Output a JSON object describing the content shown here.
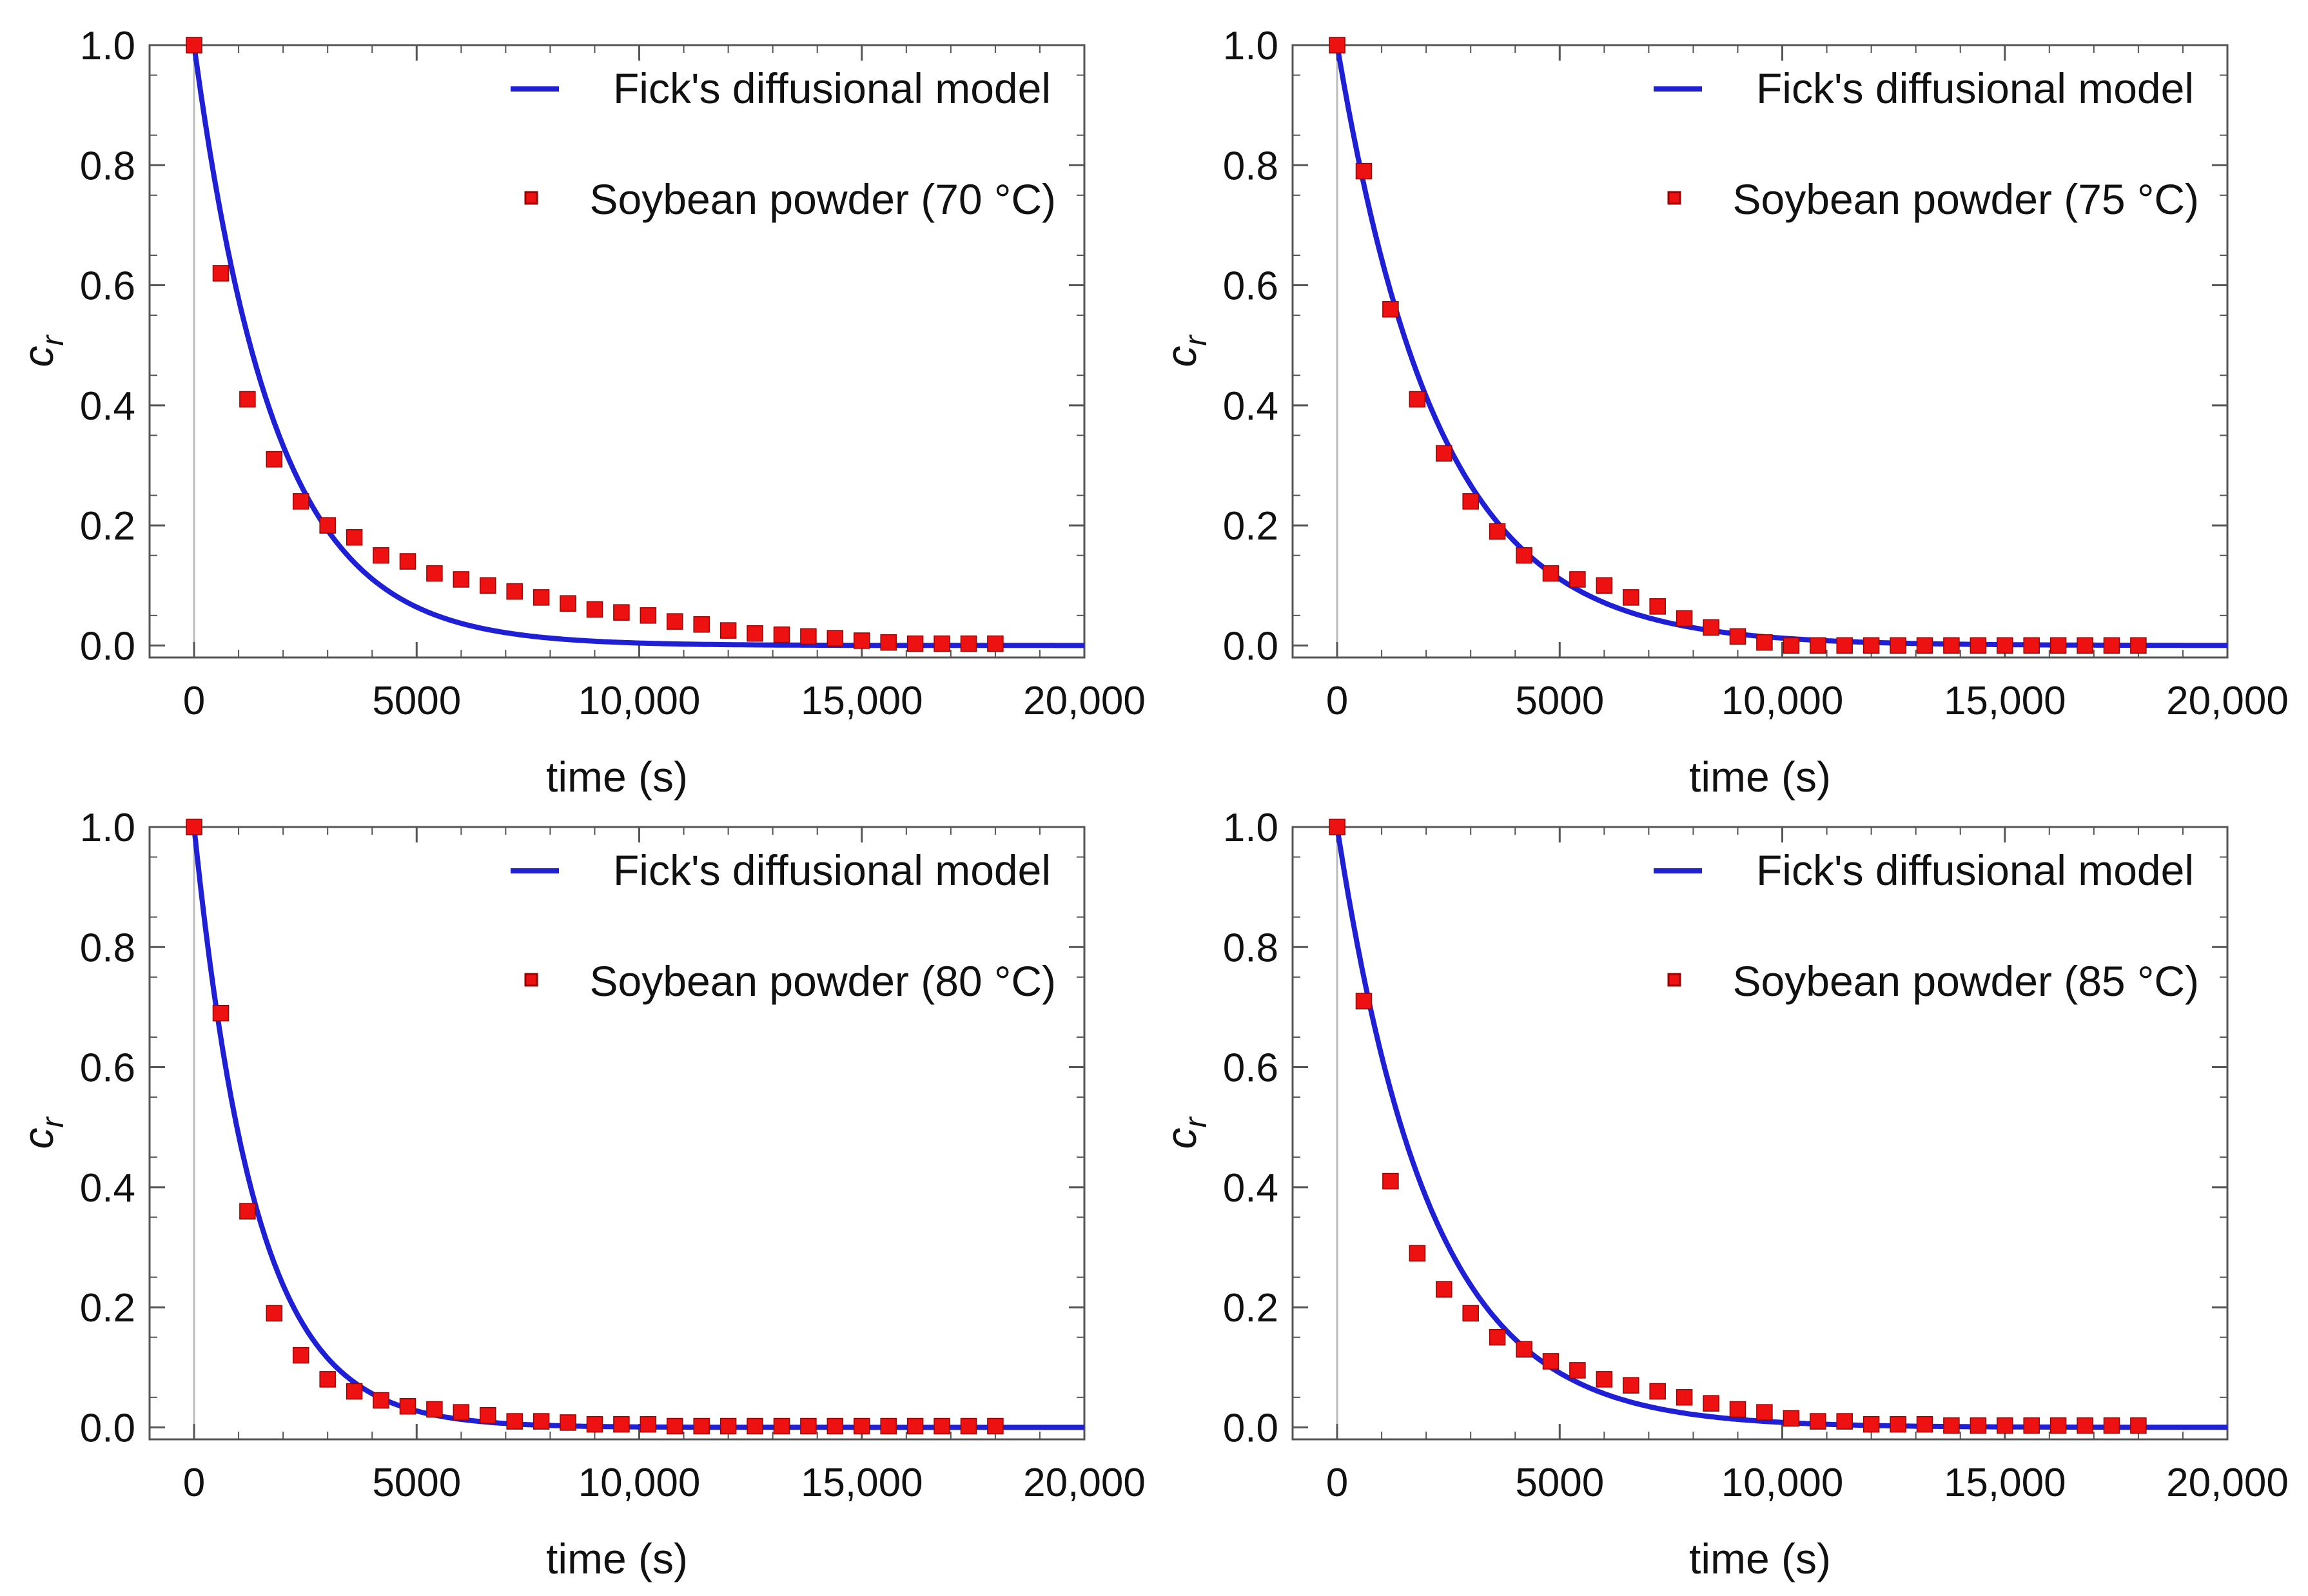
{
  "colors": {
    "model_line": "#1f1fd6",
    "data_marker": "#ee1111",
    "data_marker_edge": "#9a0000",
    "frame": "#555555",
    "zero_line": "#bbbbbb"
  },
  "chart_data": [
    {
      "type": "line+scatter",
      "xlabel": "time (s)",
      "ylabel": "c",
      "ylabel_subscript": "r",
      "xlim": [
        -1000,
        20000
      ],
      "ylim": [
        -0.02,
        1.0
      ],
      "xticks": [
        0,
        5000,
        10000,
        15000,
        20000
      ],
      "xtick_labels": [
        "0",
        "5000",
        "10,000",
        "15,000",
        "20,000"
      ],
      "yticks": [
        0.0,
        0.2,
        0.4,
        0.6,
        0.8,
        1.0
      ],
      "ytick_labels": [
        "0.0",
        "0.2",
        "0.4",
        "0.6",
        "0.8",
        "1.0"
      ],
      "legend": {
        "line_label": "Fick's diffusional model",
        "marker_label": "Soybean powder (70 °C)",
        "position": "top-right"
      },
      "model": {
        "name": "Fick's diffusional model",
        "k": 0.00055
      },
      "series": {
        "name": "Soybean powder (70 °C)",
        "x": [
          0,
          600,
          1200,
          1800,
          2400,
          3000,
          3600,
          4200,
          4800,
          5400,
          6000,
          6600,
          7200,
          7800,
          8400,
          9000,
          9600,
          10200,
          10800,
          11400,
          12000,
          12600,
          13200,
          13800,
          14400,
          15000,
          15600,
          16200,
          16800,
          17400,
          18000
        ],
        "y": [
          1.0,
          0.62,
          0.41,
          0.31,
          0.24,
          0.2,
          0.18,
          0.15,
          0.14,
          0.12,
          0.11,
          0.1,
          0.09,
          0.08,
          0.07,
          0.06,
          0.055,
          0.05,
          0.04,
          0.035,
          0.025,
          0.02,
          0.018,
          0.015,
          0.012,
          0.008,
          0.005,
          0.003,
          0.003,
          0.003,
          0.003
        ]
      }
    },
    {
      "type": "line+scatter",
      "xlabel": "time (s)",
      "ylabel": "c",
      "ylabel_subscript": "r",
      "xlim": [
        -1000,
        20000
      ],
      "ylim": [
        -0.02,
        1.0
      ],
      "xticks": [
        0,
        5000,
        10000,
        15000,
        20000
      ],
      "xtick_labels": [
        "0",
        "5000",
        "10,000",
        "15,000",
        "20,000"
      ],
      "yticks": [
        0.0,
        0.2,
        0.4,
        0.6,
        0.8,
        1.0
      ],
      "ytick_labels": [
        "0.0",
        "0.2",
        "0.4",
        "0.6",
        "0.8",
        "1.0"
      ],
      "legend": {
        "line_label": "Fick's diffusional model",
        "marker_label": "Soybean powder (75 °C)",
        "position": "top-right"
      },
      "model": {
        "name": "Fick's diffusional model",
        "k": 0.00044
      },
      "series": {
        "name": "Soybean powder (75 °C)",
        "x": [
          0,
          600,
          1200,
          1800,
          2400,
          3000,
          3600,
          4200,
          4800,
          5400,
          6000,
          6600,
          7200,
          7800,
          8400,
          9000,
          9600,
          10200,
          10800,
          11400,
          12000,
          12600,
          13200,
          13800,
          14400,
          15000,
          15600,
          16200,
          16800,
          17400,
          18000
        ],
        "y": [
          1.0,
          0.79,
          0.56,
          0.41,
          0.32,
          0.24,
          0.19,
          0.15,
          0.12,
          0.11,
          0.1,
          0.08,
          0.065,
          0.045,
          0.03,
          0.015,
          0.005,
          0.0,
          0.0,
          0.0,
          0.0,
          0.0,
          0.0,
          0.0,
          0.0,
          0.0,
          0.0,
          0.0,
          0.0,
          0.0,
          0.0
        ]
      }
    },
    {
      "type": "line+scatter",
      "xlabel": "time (s)",
      "ylabel": "c",
      "ylabel_subscript": "r",
      "xlim": [
        -1000,
        20000
      ],
      "ylim": [
        -0.02,
        1.0
      ],
      "xticks": [
        0,
        5000,
        10000,
        15000,
        20000
      ],
      "xtick_labels": [
        "0",
        "5000",
        "10,000",
        "15,000",
        "20,000"
      ],
      "yticks": [
        0.0,
        0.2,
        0.4,
        0.6,
        0.8,
        1.0
      ],
      "ytick_labels": [
        "0.0",
        "0.2",
        "0.4",
        "0.6",
        "0.8",
        "1.0"
      ],
      "legend": {
        "line_label": "Fick's diffusional model",
        "marker_label": "Soybean powder (80 °C)",
        "position": "top-right"
      },
      "model": {
        "name": "Fick's diffusional model",
        "k": 0.00072
      },
      "series": {
        "name": "Soybean powder (80 °C)",
        "x": [
          0,
          600,
          1200,
          1800,
          2400,
          3000,
          3600,
          4200,
          4800,
          5400,
          6000,
          6600,
          7200,
          7800,
          8400,
          9000,
          9600,
          10200,
          10800,
          11400,
          12000,
          12600,
          13200,
          13800,
          14400,
          15000,
          15600,
          16200,
          16800,
          17400,
          18000
        ],
        "y": [
          1.0,
          0.69,
          0.36,
          0.19,
          0.12,
          0.08,
          0.06,
          0.045,
          0.035,
          0.03,
          0.025,
          0.02,
          0.01,
          0.01,
          0.008,
          0.005,
          0.005,
          0.005,
          0.002,
          0.002,
          0.002,
          0.002,
          0.002,
          0.002,
          0.002,
          0.002,
          0.002,
          0.002,
          0.002,
          0.002,
          0.002
        ]
      }
    },
    {
      "type": "line+scatter",
      "xlabel": "time (s)",
      "ylabel": "c",
      "ylabel_subscript": "r",
      "xlim": [
        -1000,
        20000
      ],
      "ylim": [
        -0.02,
        1.0
      ],
      "xticks": [
        0,
        5000,
        10000,
        15000,
        20000
      ],
      "xtick_labels": [
        "0",
        "5000",
        "10,000",
        "15,000",
        "20,000"
      ],
      "yticks": [
        0.0,
        0.2,
        0.4,
        0.6,
        0.8,
        1.0
      ],
      "ytick_labels": [
        "0.0",
        "0.2",
        "0.4",
        "0.6",
        "0.8",
        "1.0"
      ],
      "legend": {
        "line_label": "Fick's diffusional model",
        "marker_label": "Soybean powder (85 °C)",
        "position": "top-right"
      },
      "model": {
        "name": "Fick's diffusional model",
        "k": 0.00048
      },
      "series": {
        "name": "Soybean powder (85 °C)",
        "x": [
          0,
          600,
          1200,
          1800,
          2400,
          3000,
          3600,
          4200,
          4800,
          5400,
          6000,
          6600,
          7200,
          7800,
          8400,
          9000,
          9600,
          10200,
          10800,
          11400,
          12000,
          12600,
          13200,
          13800,
          14400,
          15000,
          15600,
          16200,
          16800,
          17400,
          18000
        ],
        "y": [
          1.0,
          0.71,
          0.41,
          0.29,
          0.23,
          0.19,
          0.15,
          0.13,
          0.11,
          0.095,
          0.08,
          0.07,
          0.06,
          0.05,
          0.04,
          0.03,
          0.025,
          0.015,
          0.01,
          0.01,
          0.005,
          0.005,
          0.005,
          0.003,
          0.003,
          0.003,
          0.003,
          0.003,
          0.003,
          0.003,
          0.003
        ]
      }
    }
  ]
}
